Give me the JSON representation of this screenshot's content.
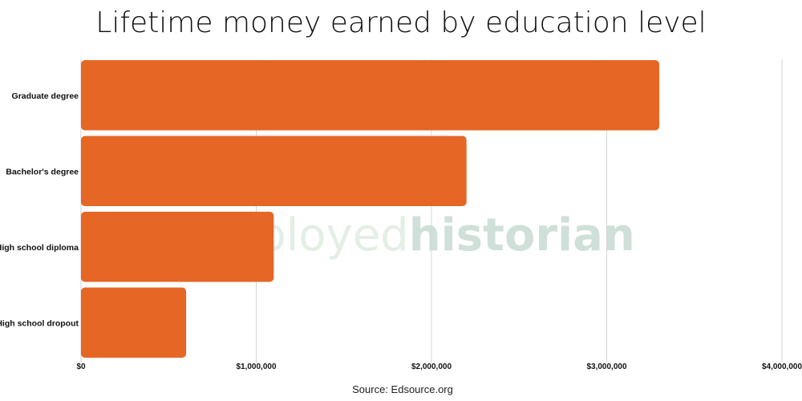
{
  "chart_data": {
    "type": "bar",
    "orientation": "horizontal",
    "title": "Lifetime money earned by education level",
    "categories": [
      "Graduate degree",
      "Bachelor's degree",
      "High school diploma",
      "High school dropout"
    ],
    "values": [
      3300000,
      2200000,
      1100000,
      600000
    ],
    "xlim": [
      0,
      4000000
    ],
    "x_ticks": [
      0,
      1000000,
      2000000,
      3000000,
      4000000
    ],
    "x_tick_labels": [
      "$0",
      "$1,000,000",
      "$2,000,000",
      "$3,000,000",
      "$4,000,000"
    ],
    "grid": "vertical",
    "legend": "none",
    "bar_color": "#e56625",
    "gridline_color": "#d4d4d4"
  },
  "source": "Source: Edsource.org",
  "watermark": {
    "light": "employed",
    "bold": "historian"
  }
}
